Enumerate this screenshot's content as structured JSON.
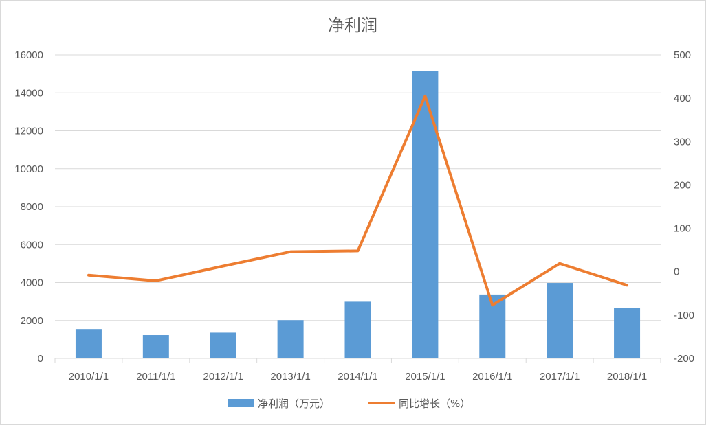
{
  "chart_data": {
    "type": "bar+line",
    "title": "净利润",
    "categories": [
      "2010/1/1",
      "2011/1/1",
      "2012/1/1",
      "2013/1/1",
      "2014/1/1",
      "2015/1/1",
      "2016/1/1",
      "2017/1/1",
      "2018/1/1"
    ],
    "series": [
      {
        "name": "净利润（万元）",
        "type": "bar",
        "axis": "left",
        "color": "#5b9bd5",
        "values": [
          1550,
          1230,
          1360,
          2020,
          2990,
          15150,
          3370,
          3980,
          2660
        ]
      },
      {
        "name": "同比增长（%）",
        "type": "line",
        "axis": "right",
        "color": "#ed7d31",
        "values": [
          -8,
          -21,
          13,
          46,
          48,
          405,
          -77,
          19,
          -31
        ]
      }
    ],
    "y_left": {
      "min": 0,
      "max": 16000,
      "ticks": [
        "16000",
        "14000",
        "12000",
        "10000",
        "8000",
        "6000",
        "4000",
        "2000",
        "0"
      ]
    },
    "y_right": {
      "min": -200,
      "max": 500,
      "ticks": [
        "500",
        "400",
        "300",
        "200",
        "100",
        "0",
        "-100",
        "-200"
      ]
    },
    "grid": true,
    "legend": "bottom"
  }
}
